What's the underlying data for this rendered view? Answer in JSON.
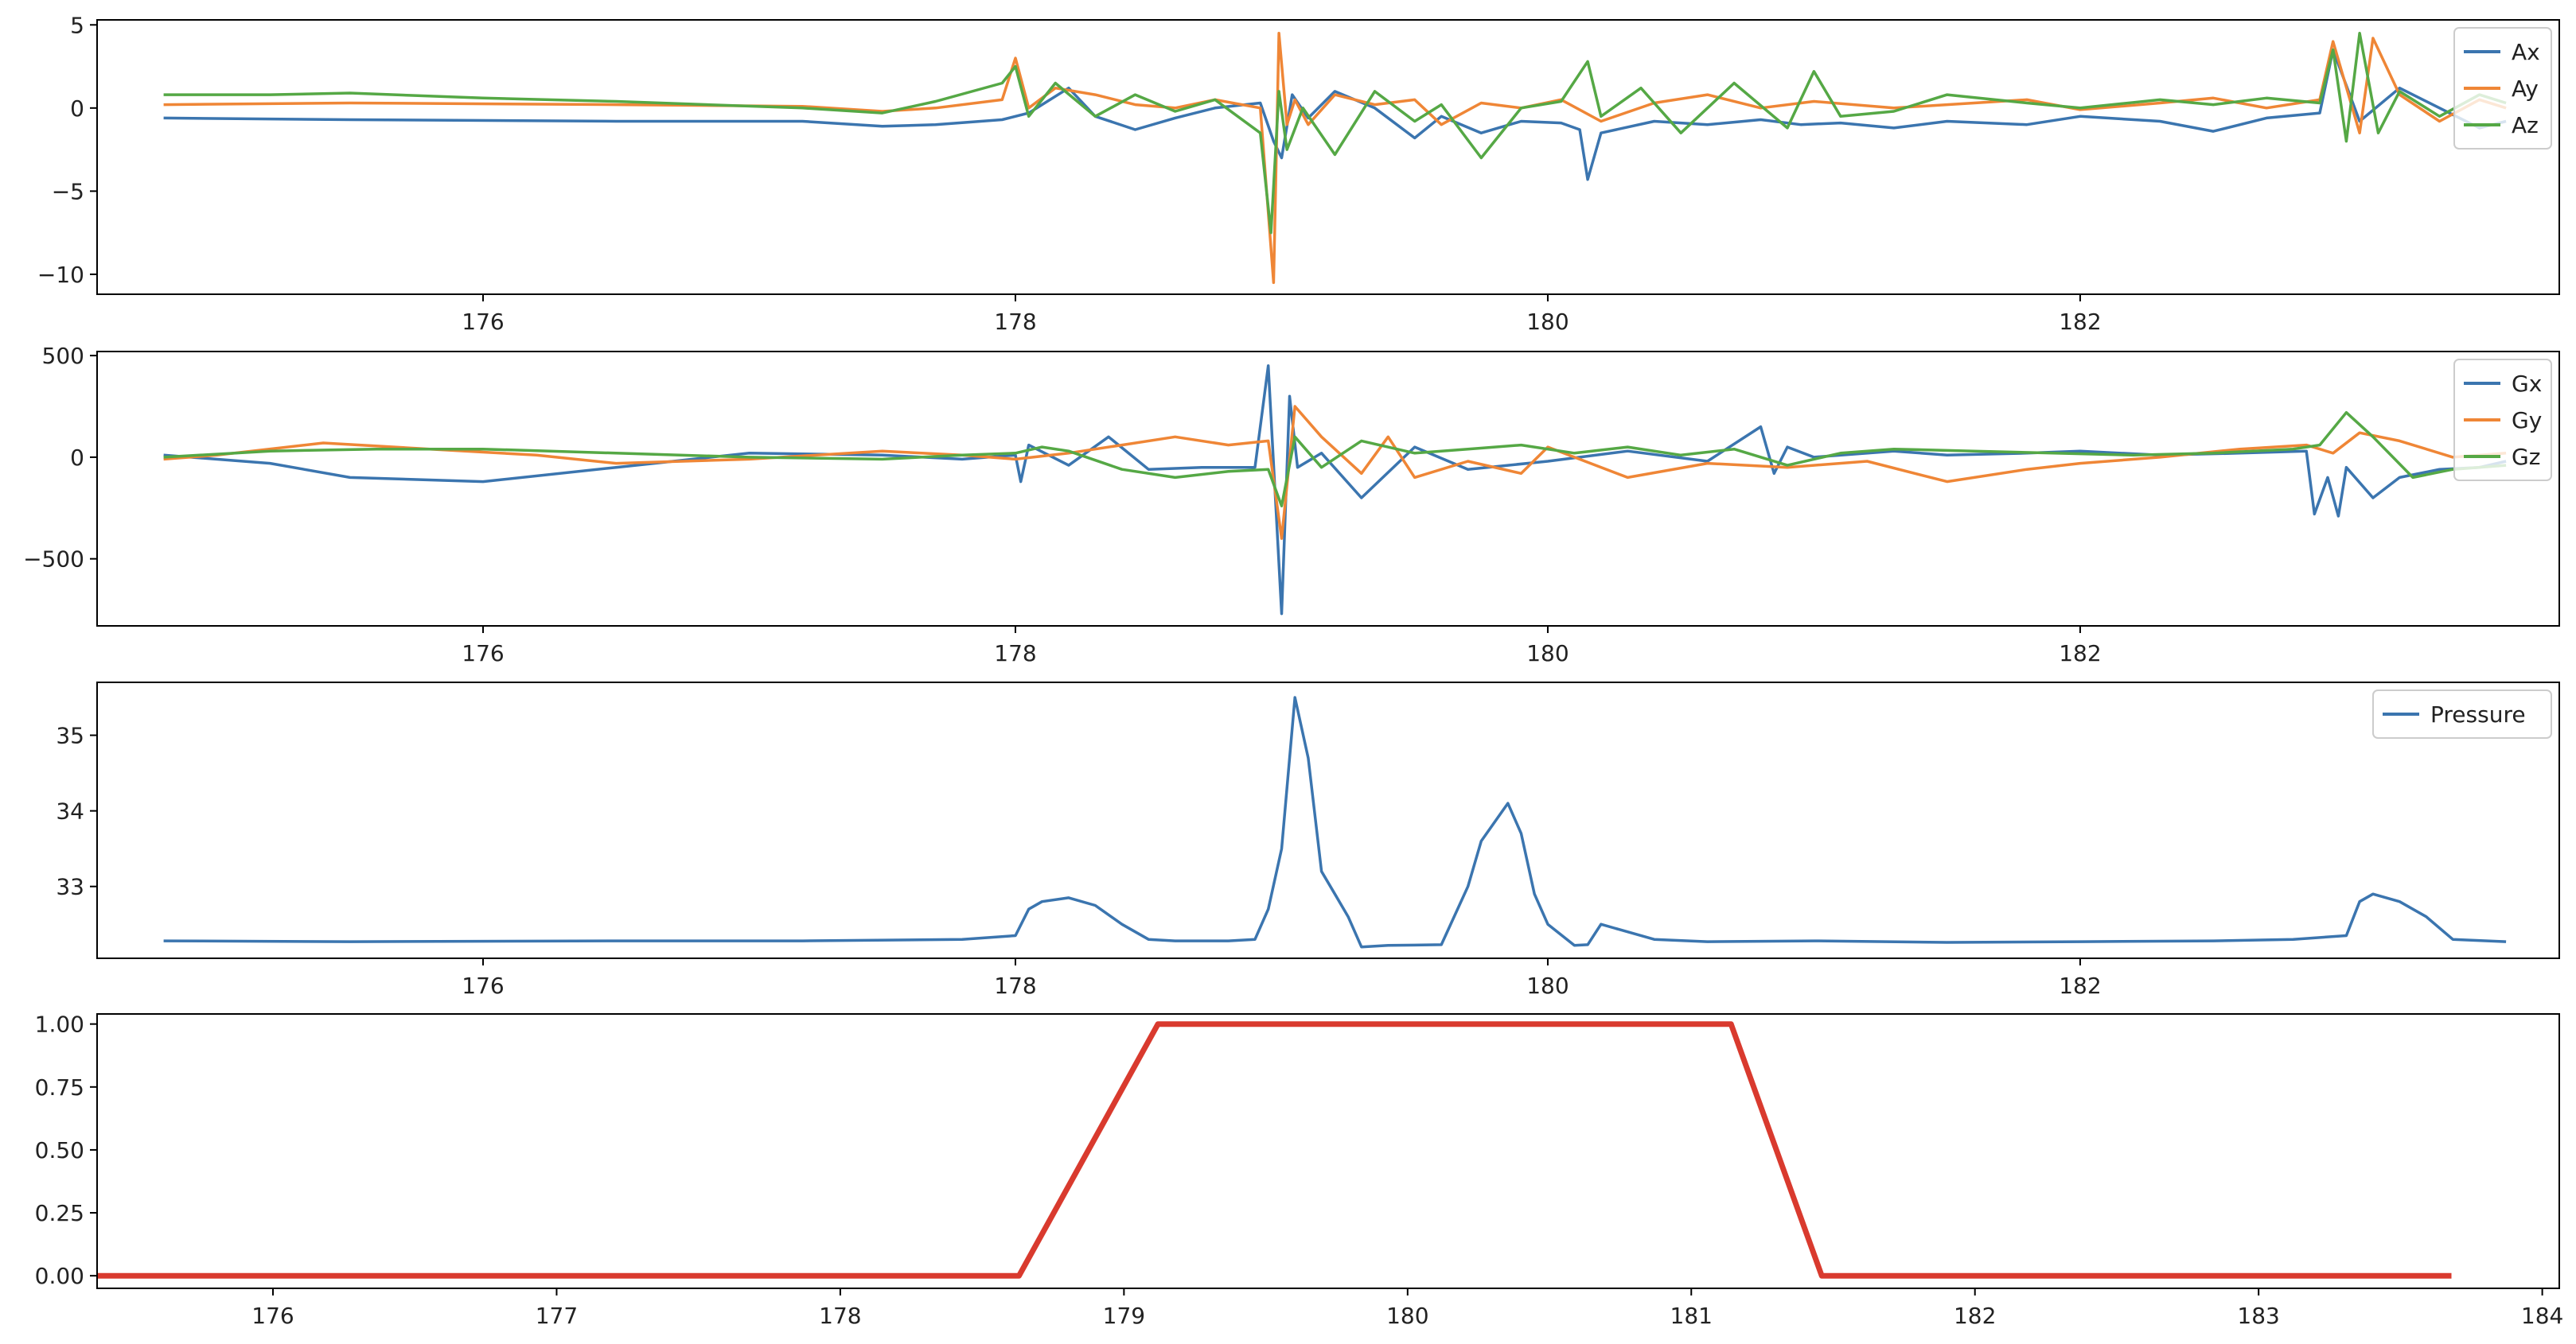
{
  "chart_data": [
    {
      "type": "line",
      "title": "",
      "xlabel": "",
      "ylabel": "",
      "xlim": [
        174.55,
        183.8
      ],
      "ylim": [
        -11.2,
        5.3
      ],
      "xticks": [
        176,
        178,
        180,
        182,
        184
      ],
      "yticks": [
        -10,
        -5,
        0,
        5
      ],
      "ytick_labels": [
        "−10",
        "−5",
        "0",
        "5"
      ],
      "legend": "top-right",
      "series": [
        {
          "name": "Ax",
          "color": "#3b75af",
          "x": [
            174.8,
            175.5,
            176.5,
            177.2,
            177.5,
            177.7,
            177.95,
            178.05,
            178.2,
            178.3,
            178.45,
            178.6,
            178.75,
            178.92,
            178.97,
            179.0,
            179.04,
            179.1,
            179.2,
            179.35,
            179.5,
            179.6,
            179.75,
            179.9,
            180.05,
            180.12,
            180.15,
            180.2,
            180.4,
            180.6,
            180.8,
            180.95,
            181.1,
            181.3,
            181.5,
            181.8,
            182.0,
            182.3,
            182.5,
            182.7,
            182.9,
            182.95,
            183.05,
            183.2,
            183.35,
            183.5,
            183.6
          ],
          "y": [
            -0.6,
            -0.7,
            -0.8,
            -0.8,
            -1.1,
            -1.0,
            -0.7,
            -0.3,
            1.2,
            -0.5,
            -1.3,
            -0.6,
            0.0,
            0.3,
            -2.0,
            -3.0,
            0.8,
            -0.6,
            1.0,
            0.0,
            -1.8,
            -0.5,
            -1.5,
            -0.8,
            -0.9,
            -1.3,
            -4.3,
            -1.5,
            -0.8,
            -1.0,
            -0.7,
            -1.0,
            -0.9,
            -1.2,
            -0.8,
            -1.0,
            -0.5,
            -0.8,
            -1.4,
            -0.6,
            -0.3,
            3.5,
            -0.8,
            1.2,
            0.0,
            -1.2,
            -0.8
          ]
        },
        {
          "name": "Ay",
          "color": "#ef8636",
          "x": [
            174.8,
            175.5,
            176.5,
            177.2,
            177.5,
            177.7,
            177.95,
            178.0,
            178.05,
            178.15,
            178.3,
            178.45,
            178.6,
            178.75,
            178.92,
            178.97,
            178.99,
            179.02,
            179.05,
            179.1,
            179.2,
            179.35,
            179.5,
            179.6,
            179.75,
            179.9,
            180.05,
            180.2,
            180.4,
            180.6,
            180.8,
            181.0,
            181.3,
            181.5,
            181.8,
            182.0,
            182.3,
            182.5,
            182.7,
            182.9,
            182.95,
            183.05,
            183.1,
            183.2,
            183.35,
            183.5,
            183.6
          ],
          "y": [
            0.2,
            0.3,
            0.2,
            0.1,
            -0.2,
            0.0,
            0.5,
            3.0,
            0.0,
            1.2,
            0.8,
            0.2,
            0.0,
            0.5,
            0.0,
            -10.5,
            4.5,
            -1.0,
            0.5,
            -1.0,
            0.8,
            0.2,
            0.5,
            -1.0,
            0.3,
            0.0,
            0.5,
            -0.8,
            0.3,
            0.8,
            0.0,
            0.4,
            0.0,
            0.2,
            0.5,
            -0.1,
            0.3,
            0.6,
            0.0,
            0.5,
            4.0,
            -1.5,
            4.2,
            0.8,
            -0.8,
            0.5,
            0.0
          ]
        },
        {
          "name": "Az",
          "color": "#55a845",
          "x": [
            174.8,
            175.2,
            175.5,
            176.0,
            176.5,
            177.2,
            177.5,
            177.7,
            177.95,
            178.0,
            178.05,
            178.15,
            178.3,
            178.45,
            178.6,
            178.75,
            178.92,
            178.96,
            178.99,
            179.02,
            179.08,
            179.2,
            179.35,
            179.5,
            179.6,
            179.75,
            179.9,
            180.05,
            180.15,
            180.2,
            180.35,
            180.5,
            180.7,
            180.9,
            181.0,
            181.1,
            181.3,
            181.5,
            181.8,
            182.0,
            182.3,
            182.5,
            182.7,
            182.9,
            182.95,
            183.0,
            183.05,
            183.12,
            183.2,
            183.35,
            183.5,
            183.6
          ],
          "y": [
            0.8,
            0.8,
            0.9,
            0.6,
            0.4,
            0.0,
            -0.3,
            0.4,
            1.5,
            2.5,
            -0.5,
            1.5,
            -0.5,
            0.8,
            -0.2,
            0.5,
            -1.5,
            -7.5,
            1.0,
            -2.5,
            0.0,
            -2.8,
            1.0,
            -0.8,
            0.2,
            -3.0,
            0.0,
            0.4,
            2.8,
            -0.5,
            1.2,
            -1.5,
            1.5,
            -1.2,
            2.2,
            -0.5,
            -0.2,
            0.8,
            0.3,
            0.0,
            0.5,
            0.2,
            0.6,
            0.3,
            3.5,
            -2.0,
            4.5,
            -1.5,
            1.0,
            -0.5,
            0.8,
            0.3
          ]
        }
      ]
    },
    {
      "type": "line",
      "title": "",
      "xlabel": "",
      "ylabel": "",
      "xlim": [
        174.55,
        183.8
      ],
      "ylim": [
        -830,
        520
      ],
      "xticks": [
        176,
        178,
        180,
        182,
        184
      ],
      "yticks": [
        -500,
        0,
        500
      ],
      "ytick_labels": [
        "−500",
        "0",
        "500"
      ],
      "legend": "top-right",
      "series": [
        {
          "name": "Gx",
          "color": "#3b75af",
          "x": [
            174.8,
            175.2,
            175.5,
            176.0,
            176.5,
            177.0,
            177.5,
            177.8,
            178.0,
            178.02,
            178.05,
            178.2,
            178.35,
            178.5,
            178.7,
            178.9,
            178.95,
            179.0,
            179.03,
            179.06,
            179.15,
            179.3,
            179.5,
            179.7,
            180.0,
            180.3,
            180.6,
            180.8,
            180.85,
            180.9,
            181.0,
            181.3,
            181.5,
            181.8,
            182.0,
            182.3,
            182.6,
            182.85,
            182.88,
            182.93,
            182.97,
            183.0,
            183.1,
            183.2,
            183.35,
            183.5,
            183.6
          ],
          "y": [
            10,
            -30,
            -100,
            -120,
            -50,
            20,
            10,
            -10,
            10,
            -120,
            60,
            -40,
            100,
            -60,
            -50,
            -50,
            450,
            -770,
            300,
            -50,
            20,
            -200,
            50,
            -60,
            -20,
            30,
            -20,
            150,
            -80,
            50,
            0,
            30,
            10,
            20,
            30,
            10,
            20,
            30,
            -280,
            -100,
            -290,
            -50,
            -200,
            -100,
            -60,
            -50,
            -20
          ]
        },
        {
          "name": "Gy",
          "color": "#ef8636",
          "x": [
            174.8,
            175.0,
            175.4,
            175.8,
            176.2,
            176.5,
            177.0,
            177.5,
            177.8,
            178.0,
            178.2,
            178.4,
            178.6,
            178.8,
            178.95,
            179.0,
            179.05,
            179.15,
            179.3,
            179.4,
            179.5,
            179.7,
            179.9,
            180.0,
            180.3,
            180.6,
            180.9,
            181.2,
            181.5,
            181.8,
            182.0,
            182.3,
            182.6,
            182.85,
            182.95,
            183.05,
            183.2,
            183.4,
            183.6
          ],
          "y": [
            -10,
            10,
            70,
            40,
            10,
            -30,
            -10,
            30,
            10,
            -10,
            20,
            60,
            100,
            60,
            80,
            -400,
            250,
            100,
            -80,
            100,
            -100,
            -20,
            -80,
            50,
            -100,
            -30,
            -50,
            -20,
            -120,
            -60,
            -30,
            0,
            40,
            60,
            20,
            120,
            80,
            0,
            20
          ]
        },
        {
          "name": "Gz",
          "color": "#55a845",
          "x": [
            174.8,
            175.2,
            175.6,
            176.0,
            176.5,
            177.0,
            177.5,
            177.8,
            178.0,
            178.1,
            178.2,
            178.4,
            178.6,
            178.8,
            178.95,
            179.0,
            179.05,
            179.15,
            179.3,
            179.5,
            179.7,
            179.9,
            180.1,
            180.3,
            180.5,
            180.7,
            180.9,
            181.1,
            181.3,
            181.6,
            181.9,
            182.2,
            182.5,
            182.8,
            182.9,
            183.0,
            183.1,
            183.25,
            183.4,
            183.6
          ],
          "y": [
            0,
            30,
            40,
            40,
            20,
            0,
            -10,
            10,
            20,
            50,
            30,
            -60,
            -100,
            -70,
            -60,
            -240,
            100,
            -50,
            80,
            20,
            40,
            60,
            20,
            50,
            10,
            40,
            -40,
            20,
            40,
            30,
            20,
            10,
            20,
            40,
            60,
            220,
            100,
            -100,
            -60,
            -40
          ]
        }
      ]
    },
    {
      "type": "line",
      "title": "",
      "xlabel": "",
      "ylabel": "",
      "xlim": [
        174.55,
        183.8
      ],
      "ylim": [
        32.05,
        35.7
      ],
      "xticks": [
        176,
        178,
        180,
        182,
        184
      ],
      "yticks": [
        33,
        34,
        35
      ],
      "ytick_labels": [
        "33",
        "34",
        "35"
      ],
      "legend": "top-right",
      "series": [
        {
          "name": "Pressure",
          "color": "#3b75af",
          "x": [
            174.8,
            175.5,
            176.5,
            177.2,
            177.8,
            178.0,
            178.05,
            178.1,
            178.2,
            178.3,
            178.4,
            178.5,
            178.6,
            178.8,
            178.9,
            178.95,
            179.0,
            179.05,
            179.1,
            179.15,
            179.2,
            179.25,
            179.3,
            179.4,
            179.6,
            179.7,
            179.75,
            179.85,
            179.9,
            179.95,
            180.0,
            180.1,
            180.15,
            180.2,
            180.25,
            180.4,
            180.6,
            181.0,
            181.5,
            182.0,
            182.5,
            182.8,
            183.0,
            183.05,
            183.1,
            183.2,
            183.3,
            183.4,
            183.6
          ],
          "y": [
            32.28,
            32.27,
            32.28,
            32.28,
            32.3,
            32.35,
            32.7,
            32.8,
            32.85,
            32.75,
            32.5,
            32.3,
            32.28,
            32.28,
            32.3,
            32.7,
            33.5,
            35.5,
            34.7,
            33.2,
            32.9,
            32.6,
            32.2,
            32.22,
            32.23,
            33.0,
            33.6,
            34.1,
            33.7,
            32.9,
            32.5,
            32.22,
            32.23,
            32.5,
            32.45,
            32.3,
            32.27,
            32.28,
            32.26,
            32.27,
            32.28,
            32.3,
            32.35,
            32.8,
            32.9,
            32.8,
            32.6,
            32.3,
            32.27
          ]
        }
      ]
    },
    {
      "type": "line",
      "title": "",
      "xlabel": "",
      "ylabel": "",
      "xlim": [
        175.38,
        184.06
      ],
      "ylim": [
        -0.05,
        1.04
      ],
      "xticks": [
        176,
        177,
        178,
        179,
        180,
        181,
        182,
        183,
        184
      ],
      "yticks": [
        0.0,
        0.25,
        0.5,
        0.75,
        1.0
      ],
      "ytick_labels": [
        "0.00",
        "0.25",
        "0.50",
        "0.75",
        "1.00"
      ],
      "legend": "",
      "series": [
        {
          "name": "",
          "color": "#d93a2e",
          "x": [
            175.38,
            178.63,
            179.12,
            181.14,
            181.46,
            183.68
          ],
          "y": [
            0,
            0,
            1,
            1,
            0,
            0
          ]
        }
      ]
    }
  ]
}
